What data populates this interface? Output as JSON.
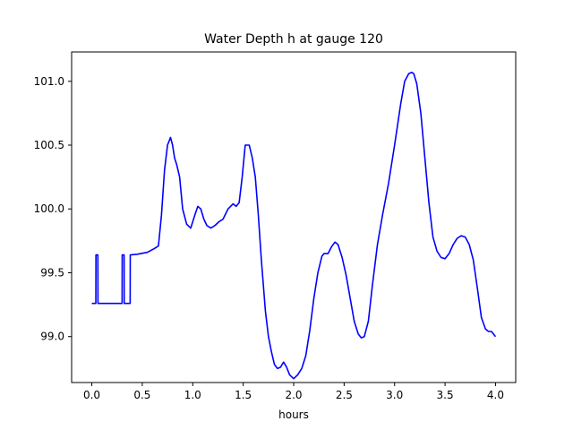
{
  "chart_data": {
    "type": "line",
    "title": "Water Depth h at gauge 120",
    "xlabel": "hours",
    "ylabel": "",
    "xlim": [
      -0.2,
      4.2
    ],
    "ylim": [
      98.64,
      101.23
    ],
    "x_ticks": [
      {
        "value": 0.0,
        "label": "0.0"
      },
      {
        "value": 0.5,
        "label": "0.5"
      },
      {
        "value": 1.0,
        "label": "1.0"
      },
      {
        "value": 1.5,
        "label": "1.5"
      },
      {
        "value": 2.0,
        "label": "2.0"
      },
      {
        "value": 2.5,
        "label": "2.5"
      },
      {
        "value": 3.0,
        "label": "3.0"
      },
      {
        "value": 3.5,
        "label": "3.5"
      },
      {
        "value": 4.0,
        "label": "4.0"
      }
    ],
    "y_ticks": [
      {
        "value": 99.0,
        "label": "99.0"
      },
      {
        "value": 99.5,
        "label": "99.5"
      },
      {
        "value": 100.0,
        "label": "100.0"
      },
      {
        "value": 100.5,
        "label": "100.5"
      },
      {
        "value": 101.0,
        "label": "101.0"
      }
    ],
    "grid": false,
    "series": [
      {
        "color": "#0000ff",
        "x": [
          0.0,
          0.04,
          0.041,
          0.06,
          0.061,
          0.3,
          0.301,
          0.32,
          0.321,
          0.38,
          0.381,
          0.45,
          0.55,
          0.62,
          0.66,
          0.69,
          0.72,
          0.75,
          0.78,
          0.8,
          0.82,
          0.84,
          0.87,
          0.9,
          0.94,
          0.98,
          1.02,
          1.05,
          1.08,
          1.11,
          1.14,
          1.18,
          1.22,
          1.26,
          1.3,
          1.35,
          1.4,
          1.43,
          1.46,
          1.49,
          1.52,
          1.56,
          1.59,
          1.62,
          1.65,
          1.68,
          1.72,
          1.75,
          1.78,
          1.81,
          1.84,
          1.87,
          1.9,
          1.93,
          1.96,
          2.0,
          2.04,
          2.08,
          2.12,
          2.16,
          2.2,
          2.24,
          2.28,
          2.3,
          2.34,
          2.38,
          2.41,
          2.44,
          2.48,
          2.52,
          2.56,
          2.6,
          2.64,
          2.67,
          2.7,
          2.74,
          2.78,
          2.83,
          2.88,
          2.94,
          3.0,
          3.06,
          3.1,
          3.14,
          3.17,
          3.19,
          3.22,
          3.26,
          3.3,
          3.34,
          3.38,
          3.42,
          3.46,
          3.5,
          3.54,
          3.58,
          3.62,
          3.66,
          3.7,
          3.74,
          3.78,
          3.82,
          3.86,
          3.9,
          3.93,
          3.96,
          4.0
        ],
        "y": [
          99.26,
          99.26,
          99.64,
          99.64,
          99.26,
          99.26,
          99.64,
          99.64,
          99.26,
          99.26,
          99.64,
          99.645,
          99.66,
          99.69,
          99.71,
          99.95,
          100.3,
          100.5,
          100.56,
          100.5,
          100.4,
          100.35,
          100.25,
          100.0,
          99.88,
          99.85,
          99.95,
          100.02,
          100.0,
          99.92,
          99.87,
          99.85,
          99.87,
          99.9,
          99.92,
          100.0,
          100.04,
          100.02,
          100.05,
          100.25,
          100.5,
          100.5,
          100.4,
          100.25,
          99.95,
          99.6,
          99.2,
          99.0,
          98.88,
          98.78,
          98.75,
          98.76,
          98.8,
          98.76,
          98.7,
          98.67,
          98.7,
          98.75,
          98.85,
          99.05,
          99.3,
          99.5,
          99.63,
          99.65,
          99.65,
          99.71,
          99.74,
          99.72,
          99.62,
          99.48,
          99.3,
          99.12,
          99.02,
          98.99,
          99.0,
          99.12,
          99.4,
          99.72,
          99.95,
          100.2,
          100.5,
          100.82,
          101.0,
          101.06,
          101.07,
          101.06,
          100.98,
          100.75,
          100.4,
          100.05,
          99.78,
          99.67,
          99.62,
          99.61,
          99.65,
          99.72,
          99.77,
          99.79,
          99.78,
          99.72,
          99.6,
          99.38,
          99.15,
          99.06,
          99.04,
          99.04,
          99.0
        ]
      }
    ]
  }
}
